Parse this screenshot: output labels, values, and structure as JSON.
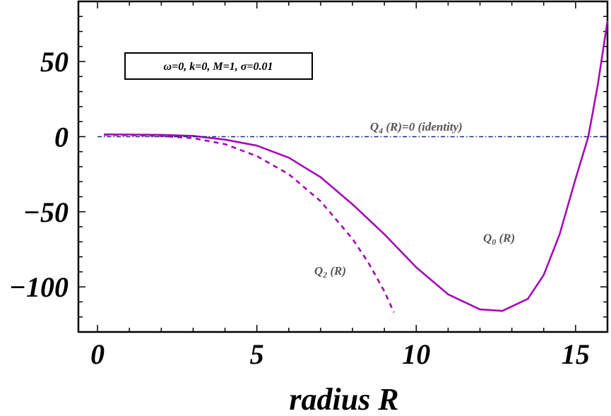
{
  "chart_data": {
    "type": "line",
    "xlabel": "radius R",
    "ylabel": "",
    "xlim": [
      -0.6,
      16.0
    ],
    "ylim": [
      -130,
      90
    ],
    "x_ticks": [
      0,
      5,
      10,
      15
    ],
    "x_tick_labels": [
      "0",
      "5",
      "10",
      "15"
    ],
    "y_ticks": [
      50,
      0,
      -50,
      -100
    ],
    "y_tick_labels": [
      "50",
      "0",
      "−50",
      "−100"
    ],
    "grid": false,
    "legend_box": "ω=0, k=0, M=1, σ=0.01",
    "colors": {
      "q0": "#a30bb5",
      "q2": "#a30bb5",
      "q4": "#1a237e"
    },
    "annotations": [
      {
        "base": "Q",
        "sub": "4",
        "rest": " (R)=0 (identity)",
        "x": 10.0,
        "y": 4.0
      },
      {
        "base": "Q",
        "sub": "0",
        "rest": " (R)",
        "x": 12.6,
        "y": -70.0
      },
      {
        "base": "Q",
        "sub": "2",
        "rest": " (R)",
        "x": 7.3,
        "y": -92.0
      }
    ],
    "series": [
      {
        "id": "q0",
        "style": "solid",
        "x": [
          0.2,
          1,
          2,
          3,
          4,
          5,
          6,
          7,
          8,
          9,
          10,
          11,
          12,
          12.7,
          13.5,
          14,
          14.5,
          15,
          15.4,
          15.7,
          16.0
        ],
        "y": [
          1.5,
          1.4,
          1.2,
          0.5,
          -2,
          -6,
          -14,
          -27,
          -45,
          -65,
          -87,
          -105,
          -115,
          -116,
          -108,
          -92,
          -65,
          -28,
          0,
          35,
          77
        ]
      },
      {
        "id": "q2",
        "style": "dashed",
        "x": [
          0.2,
          1,
          2,
          3,
          4,
          5,
          6,
          7,
          8,
          8.5,
          9,
          9.3
        ],
        "y": [
          1.2,
          1.0,
          0.4,
          -1,
          -5,
          -13,
          -25,
          -43,
          -68,
          -84,
          -103,
          -117
        ]
      },
      {
        "id": "q4",
        "style": "dotdash",
        "x": [
          0.0,
          16.0
        ],
        "y": [
          0,
          0
        ]
      }
    ]
  }
}
